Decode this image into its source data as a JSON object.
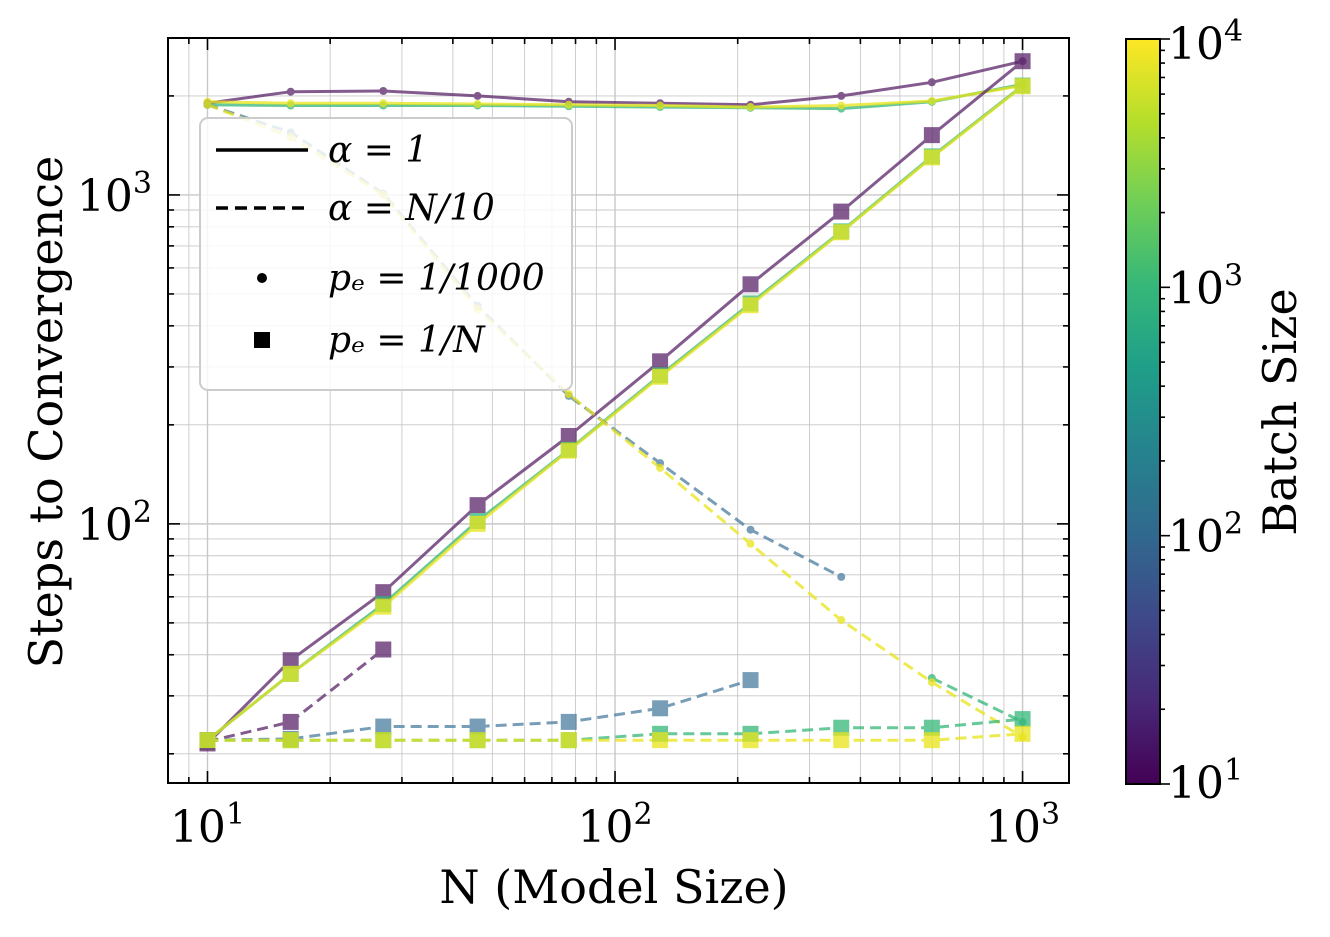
{
  "chart_data": {
    "type": "line",
    "xlabel": "N (Model Size)",
    "ylabel": "Steps to Convergence",
    "xscale": "log",
    "yscale": "log",
    "xlim": [
      8,
      1300
    ],
    "ylim": [
      16.3,
      3000
    ],
    "grid": true,
    "legend_position": "upper-left",
    "x_ticks": [
      {
        "value": 10,
        "base": "10",
        "exp": "1"
      },
      {
        "value": 100,
        "base": "10",
        "exp": "2"
      },
      {
        "value": 1000,
        "base": "10",
        "exp": "3"
      }
    ],
    "y_ticks": [
      {
        "value": 100,
        "base": "10",
        "exp": "2"
      },
      {
        "value": 1000,
        "base": "10",
        "exp": "3"
      }
    ],
    "legend": [
      {
        "style": "solid",
        "label": "α = 1"
      },
      {
        "style": "dashed",
        "label": "α = N/10"
      },
      {
        "style": "dot",
        "label": "pₑ = 1/1000"
      },
      {
        "style": "square",
        "label": "pₑ = 1/N"
      }
    ],
    "colorbar": {
      "label": "Batch Size",
      "scale": "log",
      "range": [
        10,
        10000
      ],
      "ticks": [
        {
          "value": 10,
          "base": "10",
          "exp": "1"
        },
        {
          "value": 100,
          "base": "10",
          "exp": "2"
        },
        {
          "value": 1000,
          "base": "10",
          "exp": "3"
        },
        {
          "value": 10000,
          "base": "10",
          "exp": "4"
        }
      ],
      "colors": [
        "#440154",
        "#482878",
        "#3e4989",
        "#31688e",
        "#26828e",
        "#1f9e89",
        "#35b779",
        "#6ece58",
        "#b5de2b",
        "#fde725"
      ]
    },
    "series": [
      {
        "batch_size": 10,
        "alpha": "1",
        "pe": "1/1000",
        "color": "#5a2569",
        "x": [
          10,
          16,
          27,
          46,
          77,
          129,
          215,
          359,
          599,
          1000
        ],
        "y": [
          1900,
          2060,
          2070,
          2000,
          1920,
          1900,
          1880,
          2000,
          2200,
          2550
        ]
      },
      {
        "batch_size": 1000,
        "alpha": "1",
        "pe": "1/1000",
        "color": "#35b779",
        "x": [
          10,
          16,
          27,
          46,
          77,
          129,
          215,
          359,
          599,
          1000
        ],
        "y": [
          1880,
          1870,
          1870,
          1870,
          1860,
          1850,
          1840,
          1830,
          1920,
          2170
        ]
      },
      {
        "batch_size": 10000,
        "alpha": "1",
        "pe": "1/1000",
        "color": "#e8e419",
        "x": [
          10,
          16,
          27,
          46,
          77,
          129,
          215,
          359,
          599,
          1000
        ],
        "y": [
          1920,
          1900,
          1900,
          1890,
          1880,
          1870,
          1850,
          1870,
          1930,
          2150
        ]
      },
      {
        "batch_size": 10,
        "alpha": "1",
        "pe": "1/N",
        "color": "#5a2569",
        "x": [
          10,
          16,
          27,
          46,
          77,
          129,
          215,
          359,
          599,
          1000
        ],
        "y": [
          21.5,
          38.5,
          62,
          114,
          185,
          312,
          535,
          890,
          1520,
          2550
        ]
      },
      {
        "batch_size": 1000,
        "alpha": "1",
        "pe": "1/N",
        "color": "#35b779",
        "x": [
          10,
          16,
          27,
          46,
          77,
          129,
          215,
          359,
          599,
          1000
        ],
        "y": [
          22,
          35,
          57,
          102,
          168,
          283,
          468,
          775,
          1310,
          2150
        ]
      },
      {
        "batch_size": 10000,
        "alpha": "1",
        "pe": "1/N",
        "color": "#e8e419",
        "x": [
          10,
          16,
          27,
          46,
          77,
          129,
          215,
          359,
          599,
          1000
        ],
        "y": [
          22,
          35,
          56,
          100,
          167,
          280,
          462,
          770,
          1300,
          2140
        ]
      },
      {
        "batch_size": 100,
        "alpha": "N/10",
        "pe": "1/1000",
        "color": "#4c7ea0",
        "x": [
          10,
          16,
          27,
          46,
          77,
          129,
          215,
          359
        ],
        "y": [
          1880,
          1550,
          1010,
          460,
          245,
          153,
          96,
          69
        ]
      },
      {
        "batch_size": 1000,
        "alpha": "N/10",
        "pe": "1/1000",
        "color": "#35b779",
        "x": [
          599,
          1000
        ],
        "y": [
          34,
          25
        ]
      },
      {
        "batch_size": 10000,
        "alpha": "N/10",
        "pe": "1/1000",
        "color": "#e8e419",
        "x": [
          10,
          16,
          27,
          46,
          77,
          129,
          215,
          359,
          599,
          1000
        ],
        "y": [
          1880,
          1500,
          1000,
          450,
          248,
          148,
          87,
          51,
          33,
          22.5
        ]
      },
      {
        "batch_size": 10,
        "alpha": "N/10",
        "pe": "1/N",
        "color": "#5a2569",
        "x": [
          10,
          16,
          27
        ],
        "y": [
          21.8,
          25,
          41.5
        ]
      },
      {
        "batch_size": 100,
        "alpha": "N/10",
        "pe": "1/N",
        "color": "#4c7ea0",
        "x": [
          10,
          16,
          27,
          46,
          77,
          129,
          215
        ],
        "y": [
          22,
          22.2,
          24.2,
          24.2,
          25,
          27.5,
          33.5
        ]
      },
      {
        "batch_size": 1000,
        "alpha": "N/10",
        "pe": "1/N",
        "color": "#35b779",
        "x": [
          10,
          16,
          27,
          46,
          77,
          129,
          215,
          359,
          599,
          1000
        ],
        "y": [
          22,
          22,
          22,
          22,
          22,
          23,
          23,
          24,
          24,
          25.5
        ]
      },
      {
        "batch_size": 10000,
        "alpha": "N/10",
        "pe": "1/N",
        "color": "#e8e419",
        "x": [
          10,
          16,
          27,
          46,
          77,
          129,
          215,
          359,
          599,
          1000
        ],
        "y": [
          22,
          22,
          22,
          22,
          22,
          22,
          22,
          22,
          22,
          23
        ]
      }
    ]
  }
}
